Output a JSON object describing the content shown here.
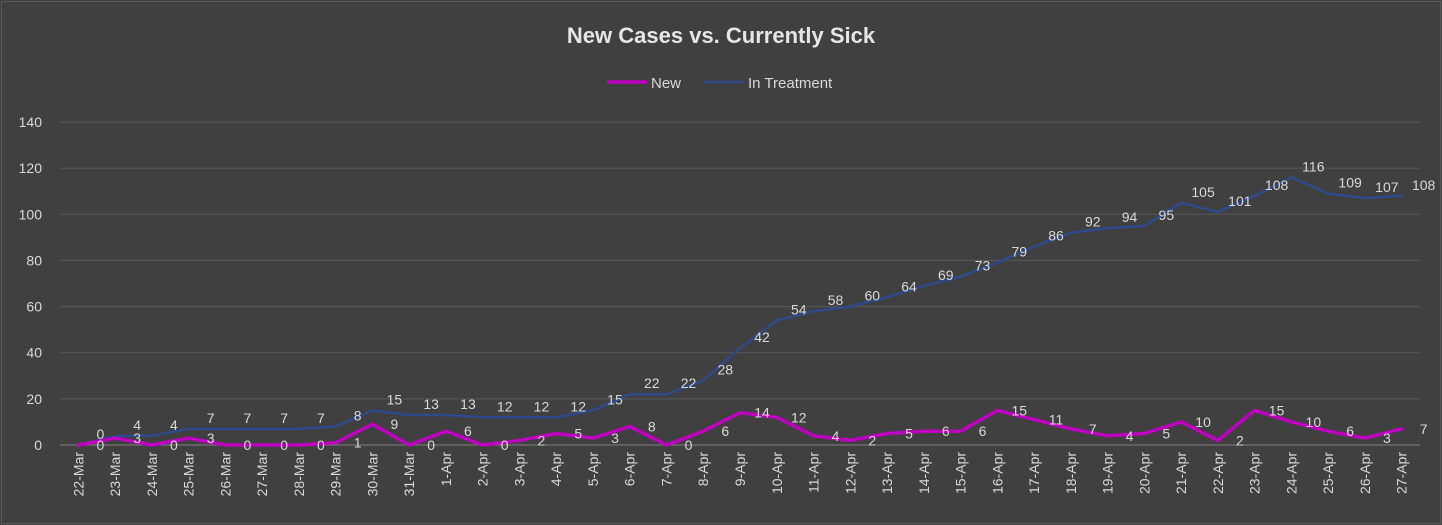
{
  "chart_data": {
    "type": "line",
    "title": "New Cases vs. Currently Sick",
    "legend_position": "top",
    "grid": true,
    "ylim": [
      0,
      140
    ],
    "yticks": [
      0,
      20,
      40,
      60,
      80,
      100,
      120,
      140
    ],
    "categories": [
      "22-Mar",
      "23-Mar",
      "24-Mar",
      "25-Mar",
      "26-Mar",
      "27-Mar",
      "28-Mar",
      "29-Mar",
      "30-Mar",
      "31-Mar",
      "1-Apr",
      "2-Apr",
      "3-Apr",
      "4-Apr",
      "5-Apr",
      "6-Apr",
      "7-Apr",
      "8-Apr",
      "9-Apr",
      "10-Apr",
      "11-Apr",
      "12-Apr",
      "13-Apr",
      "14-Apr",
      "15-Apr",
      "16-Apr",
      "17-Apr",
      "18-Apr",
      "19-Apr",
      "20-Apr",
      "21-Apr",
      "22-Apr",
      "23-Apr",
      "24-Apr",
      "25-Apr",
      "26-Apr",
      "27-Apr"
    ],
    "series": [
      {
        "name": "New",
        "color": "#c000c0",
        "values": [
          0,
          3,
          0,
          3,
          0,
          0,
          0,
          1,
          9,
          0,
          6,
          0,
          2,
          5,
          3,
          8,
          0,
          6,
          14,
          12,
          4,
          2,
          5,
          6,
          6,
          15,
          11,
          7,
          4,
          5,
          10,
          2,
          15,
          10,
          6,
          3,
          7
        ],
        "labels": [
          "0",
          "3",
          "0",
          "3",
          "0",
          "0",
          "0",
          "1",
          "9",
          "0",
          "6",
          "0",
          "2",
          "5",
          "3",
          "8",
          "0",
          "6",
          "14",
          "12",
          "4",
          "2",
          "5",
          "6",
          "6",
          "15",
          "11",
          "7",
          "4",
          "5",
          "10",
          "2",
          "15",
          "10",
          "6",
          "3",
          "7"
        ]
      },
      {
        "name": "In Treatment",
        "color": "#2e4a8a",
        "values": [
          0,
          4,
          4,
          7,
          7,
          7,
          7,
          8,
          15,
          13,
          13,
          12,
          12,
          12,
          15,
          22,
          22,
          28,
          42,
          54,
          58,
          60,
          64,
          69,
          73,
          79,
          86,
          92,
          94,
          95,
          105,
          101,
          108,
          116,
          109,
          107,
          108
        ],
        "labels": [
          "0",
          "4",
          "4",
          "7",
          "7",
          "7",
          "7",
          "8",
          "15",
          "13",
          "13",
          "12",
          "12",
          "12",
          "15",
          "22",
          "22",
          "28",
          "42",
          "54",
          "58",
          "60",
          "64",
          "69",
          "73",
          "79",
          "86",
          "92",
          "94",
          "95",
          "105",
          "101",
          "108",
          "116",
          "109",
          "107",
          "108"
        ]
      }
    ]
  }
}
